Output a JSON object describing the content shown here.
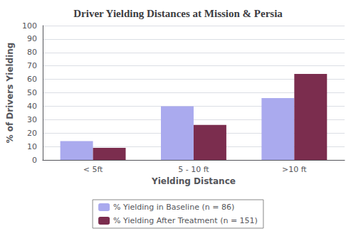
{
  "chart_data": {
    "type": "bar",
    "title": "Driver Yielding Distances at Mission & Persia",
    "xlabel": "Yielding Distance",
    "ylabel": "% of Drivers Yielding",
    "categories": [
      "< 5ft",
      "5 - 10 ft",
      ">10 ft"
    ],
    "series": [
      {
        "name": "% Yielding in Baseline (n = 86)",
        "color": "#aaaaee",
        "values": [
          14,
          40,
          46
        ]
      },
      {
        "name": "% Yielding After Treatment (n = 151)",
        "color": "#7b2d4e",
        "values": [
          9,
          26,
          64
        ]
      }
    ],
    "ylim": [
      0,
      100
    ],
    "yticks": [
      0,
      10,
      20,
      30,
      40,
      50,
      60,
      70,
      80,
      90,
      100
    ],
    "grid": true,
    "legend": "bottom"
  }
}
